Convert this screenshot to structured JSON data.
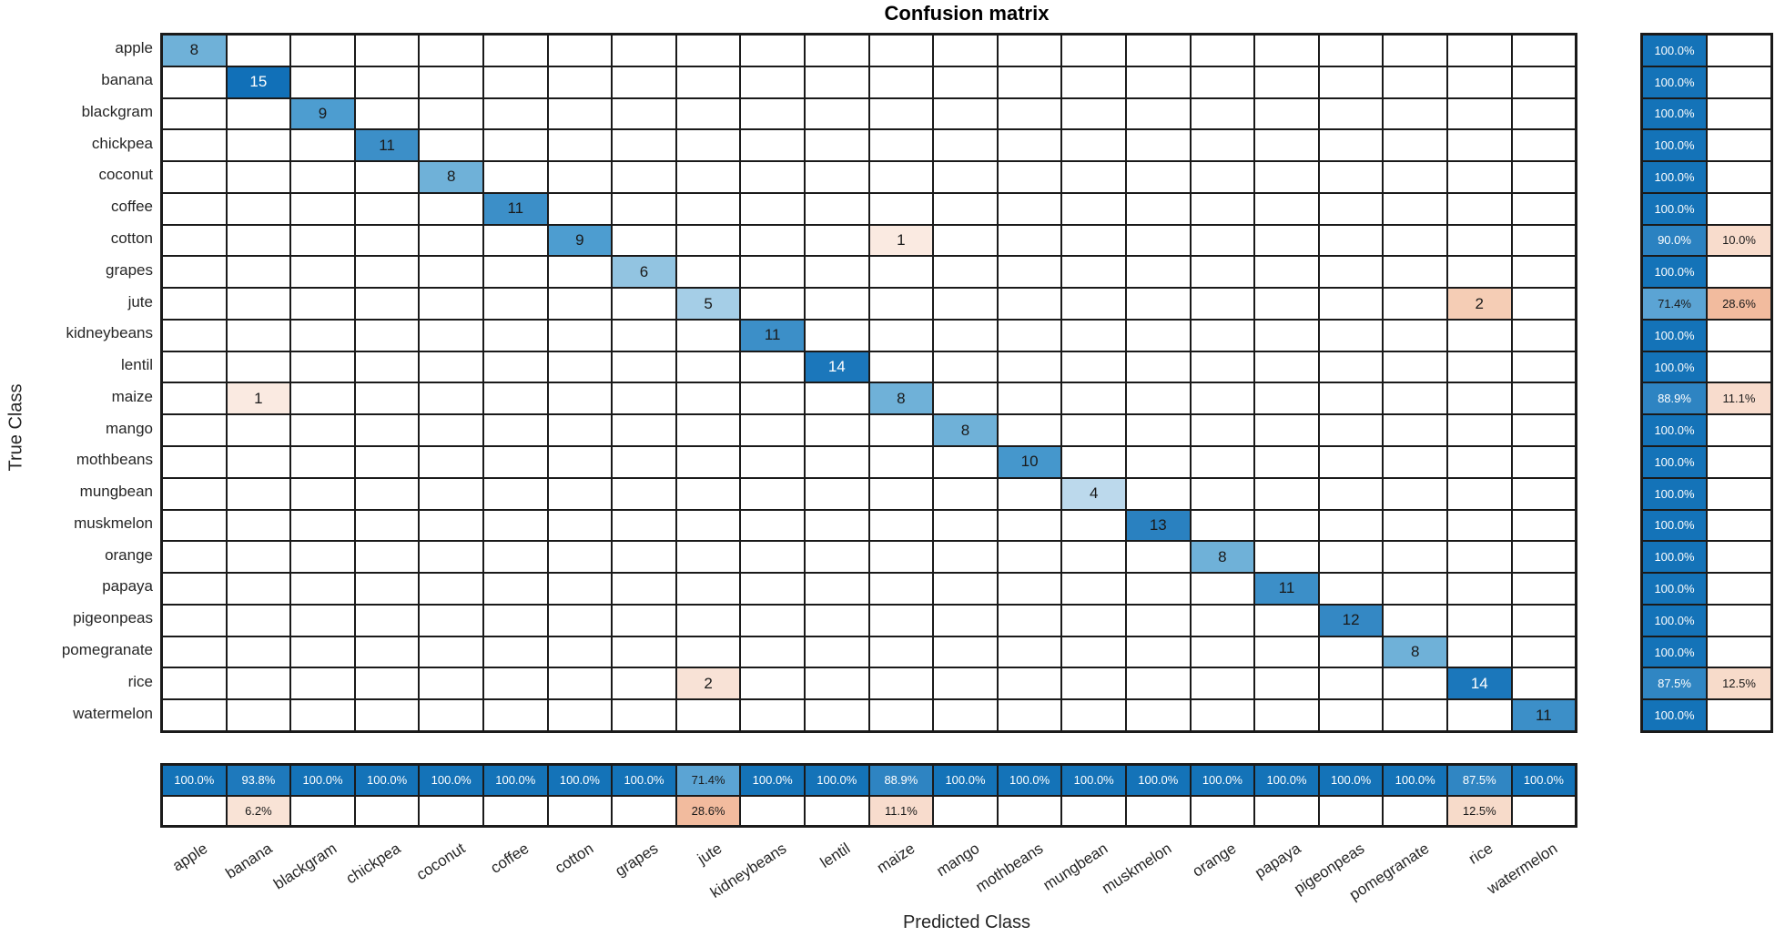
{
  "title": "Confusion matrix",
  "axes": {
    "xlabel": "Predicted Class",
    "ylabel": "True Class"
  },
  "chart_data": {
    "type": "heatmap",
    "title": "Confusion matrix",
    "xlabel": "Predicted Class",
    "ylabel": "True Class",
    "classes": [
      "apple",
      "banana",
      "blackgram",
      "chickpea",
      "coconut",
      "coffee",
      "cotton",
      "grapes",
      "jute",
      "kidneybeans",
      "lentil",
      "maize",
      "mango",
      "mothbeans",
      "mungbean",
      "muskmelon",
      "orange",
      "papaya",
      "pigeonpeas",
      "pomegranate",
      "rice",
      "watermelon"
    ],
    "diagonal_counts": [
      8,
      15,
      9,
      11,
      8,
      11,
      9,
      6,
      5,
      11,
      14,
      8,
      8,
      10,
      4,
      13,
      8,
      11,
      12,
      8,
      14,
      11
    ],
    "off_diagonal_counts": [
      {
        "true_class": "cotton",
        "predicted_class": "maize",
        "count": 1,
        "color": "#faeae1"
      },
      {
        "true_class": "jute",
        "predicted_class": "rice",
        "count": 2,
        "color": "#f5cdb5"
      },
      {
        "true_class": "maize",
        "predicted_class": "banana",
        "count": 1,
        "color": "#faeae1"
      },
      {
        "true_class": "rice",
        "predicted_class": "jute",
        "count": 2,
        "color": "#f8e2d6"
      }
    ],
    "row_summary": [
      {
        "class": "apple",
        "correct": "100.0%",
        "incorrect": ""
      },
      {
        "class": "banana",
        "correct": "100.0%",
        "incorrect": ""
      },
      {
        "class": "blackgram",
        "correct": "100.0%",
        "incorrect": ""
      },
      {
        "class": "chickpea",
        "correct": "100.0%",
        "incorrect": ""
      },
      {
        "class": "coconut",
        "correct": "100.0%",
        "incorrect": ""
      },
      {
        "class": "coffee",
        "correct": "100.0%",
        "incorrect": ""
      },
      {
        "class": "cotton",
        "correct": "90.0%",
        "incorrect": "10.0%"
      },
      {
        "class": "grapes",
        "correct": "100.0%",
        "incorrect": ""
      },
      {
        "class": "jute",
        "correct": "71.4%",
        "incorrect": "28.6%"
      },
      {
        "class": "kidneybeans",
        "correct": "100.0%",
        "incorrect": ""
      },
      {
        "class": "lentil",
        "correct": "100.0%",
        "incorrect": ""
      },
      {
        "class": "maize",
        "correct": "88.9%",
        "incorrect": "11.1%"
      },
      {
        "class": "mango",
        "correct": "100.0%",
        "incorrect": ""
      },
      {
        "class": "mothbeans",
        "correct": "100.0%",
        "incorrect": ""
      },
      {
        "class": "mungbean",
        "correct": "100.0%",
        "incorrect": ""
      },
      {
        "class": "muskmelon",
        "correct": "100.0%",
        "incorrect": ""
      },
      {
        "class": "orange",
        "correct": "100.0%",
        "incorrect": ""
      },
      {
        "class": "papaya",
        "correct": "100.0%",
        "incorrect": ""
      },
      {
        "class": "pigeonpeas",
        "correct": "100.0%",
        "incorrect": ""
      },
      {
        "class": "pomegranate",
        "correct": "100.0%",
        "incorrect": ""
      },
      {
        "class": "rice",
        "correct": "87.5%",
        "incorrect": "12.5%"
      },
      {
        "class": "watermelon",
        "correct": "100.0%",
        "incorrect": ""
      }
    ],
    "column_summary": [
      {
        "class": "apple",
        "correct": "100.0%",
        "incorrect": ""
      },
      {
        "class": "banana",
        "correct": "93.8%",
        "incorrect": "6.2%"
      },
      {
        "class": "blackgram",
        "correct": "100.0%",
        "incorrect": ""
      },
      {
        "class": "chickpea",
        "correct": "100.0%",
        "incorrect": ""
      },
      {
        "class": "coconut",
        "correct": "100.0%",
        "incorrect": ""
      },
      {
        "class": "coffee",
        "correct": "100.0%",
        "incorrect": ""
      },
      {
        "class": "cotton",
        "correct": "100.0%",
        "incorrect": ""
      },
      {
        "class": "grapes",
        "correct": "100.0%",
        "incorrect": ""
      },
      {
        "class": "jute",
        "correct": "71.4%",
        "incorrect": "28.6%"
      },
      {
        "class": "kidneybeans",
        "correct": "100.0%",
        "incorrect": ""
      },
      {
        "class": "lentil",
        "correct": "100.0%",
        "incorrect": ""
      },
      {
        "class": "maize",
        "correct": "88.9%",
        "incorrect": "11.1%"
      },
      {
        "class": "mango",
        "correct": "100.0%",
        "incorrect": ""
      },
      {
        "class": "mothbeans",
        "correct": "100.0%",
        "incorrect": ""
      },
      {
        "class": "mungbean",
        "correct": "100.0%",
        "incorrect": ""
      },
      {
        "class": "muskmelon",
        "correct": "100.0%",
        "incorrect": ""
      },
      {
        "class": "orange",
        "correct": "100.0%",
        "incorrect": ""
      },
      {
        "class": "papaya",
        "correct": "100.0%",
        "incorrect": ""
      },
      {
        "class": "pigeonpeas",
        "correct": "100.0%",
        "incorrect": ""
      },
      {
        "class": "pomegranate",
        "correct": "100.0%",
        "incorrect": ""
      },
      {
        "class": "rice",
        "correct": "87.5%",
        "incorrect": "12.5%"
      },
      {
        "class": "watermelon",
        "correct": "100.0%",
        "incorrect": ""
      }
    ]
  },
  "colors": {
    "count_blue": {
      "4": "#bcd9ec",
      "5": "#a5cee7",
      "6": "#92c4e1",
      "8": "#6fb1d8",
      "9": "#4d9dd0",
      "10": "#4597cc",
      "11": "#3c8fc8",
      "12": "#3488c4",
      "13": "#2a81c0",
      "14": "#1b77bb",
      "15": "#1170b8"
    },
    "summary_blue": {
      "100.0%": "#1473b8",
      "93.8%": "#1e79bc",
      "90.0%": "#2b82c1",
      "88.9%": "#2e84c2",
      "87.5%": "#3086c3",
      "71.4%": "#5ba4d4"
    },
    "summary_pink": {
      "28.6%": "#f2bb9e",
      "12.5%": "#f7dbca",
      "11.1%": "#f8dccd",
      "10.0%": "#f8dccc",
      "6.2%": "#f9e3d6"
    },
    "grid_line": "#1a1a1a",
    "background": "#ffffff"
  }
}
